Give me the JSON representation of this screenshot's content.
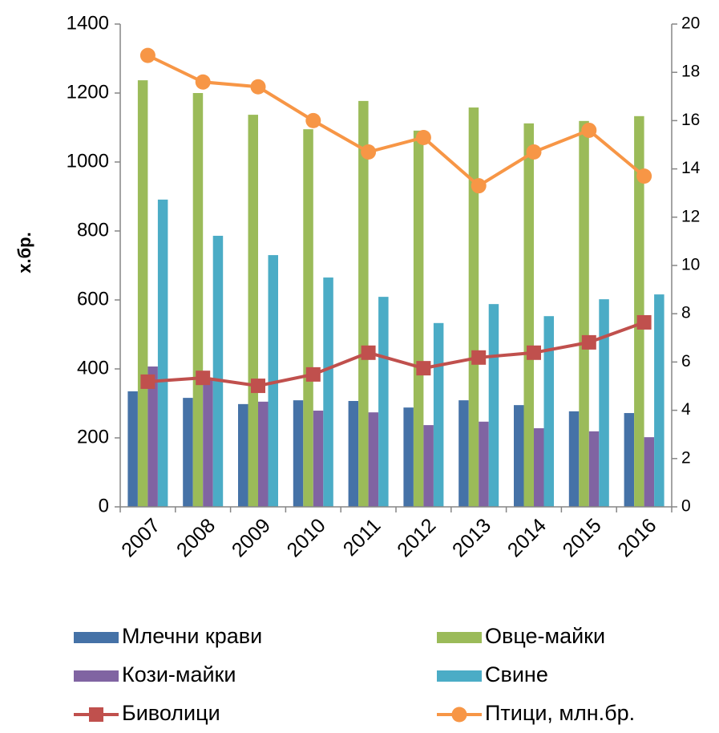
{
  "chart_data": {
    "type": "bar",
    "y_label": "х.бр.",
    "categories": [
      "2007",
      "2008",
      "2009",
      "2010",
      "2011",
      "2012",
      "2013",
      "2014",
      "2015",
      "2016"
    ],
    "series": [
      {
        "name": "Млечни крави",
        "type": "bar",
        "color": "#4572a7",
        "values": [
          335,
          316,
          298,
          309,
          307,
          288,
          309,
          295,
          277,
          272
        ]
      },
      {
        "name": "Овце-майки",
        "type": "bar",
        "color": "#9bbb59",
        "values": [
          1237,
          1200,
          1137,
          1095,
          1177,
          1091,
          1158,
          1112,
          1119,
          1133
        ]
      },
      {
        "name": "Кози-майки",
        "type": "bar",
        "color": "#8064a2",
        "values": [
          407,
          370,
          305,
          279,
          274,
          237,
          247,
          228,
          219,
          202
        ]
      },
      {
        "name": "Свине",
        "type": "bar",
        "color": "#4bacc6",
        "values": [
          891,
          786,
          730,
          665,
          609,
          533,
          588,
          553,
          602,
          616
        ]
      },
      {
        "name": "Биволици",
        "type": "line",
        "marker": "square",
        "color": "#c0504d",
        "values": [
          363,
          374,
          351,
          384,
          447,
          402,
          433,
          447,
          477,
          535
        ]
      },
      {
        "name": "Птици, млн.бр.",
        "type": "line",
        "marker": "circle",
        "axis": "y2",
        "color": "#f79646",
        "values": [
          18.7,
          17.6,
          17.4,
          16.0,
          14.7,
          15.3,
          13.3,
          14.7,
          15.6,
          13.7
        ]
      }
    ],
    "ylim": [
      0,
      1400
    ],
    "yticks": [
      0,
      200,
      400,
      600,
      800,
      1000,
      1200,
      1400
    ],
    "y2lim": [
      0,
      20
    ],
    "y2ticks": [
      0,
      2,
      4,
      6,
      8,
      10,
      12,
      14,
      16,
      18,
      20
    ],
    "grid": false,
    "legend": "bottom"
  }
}
